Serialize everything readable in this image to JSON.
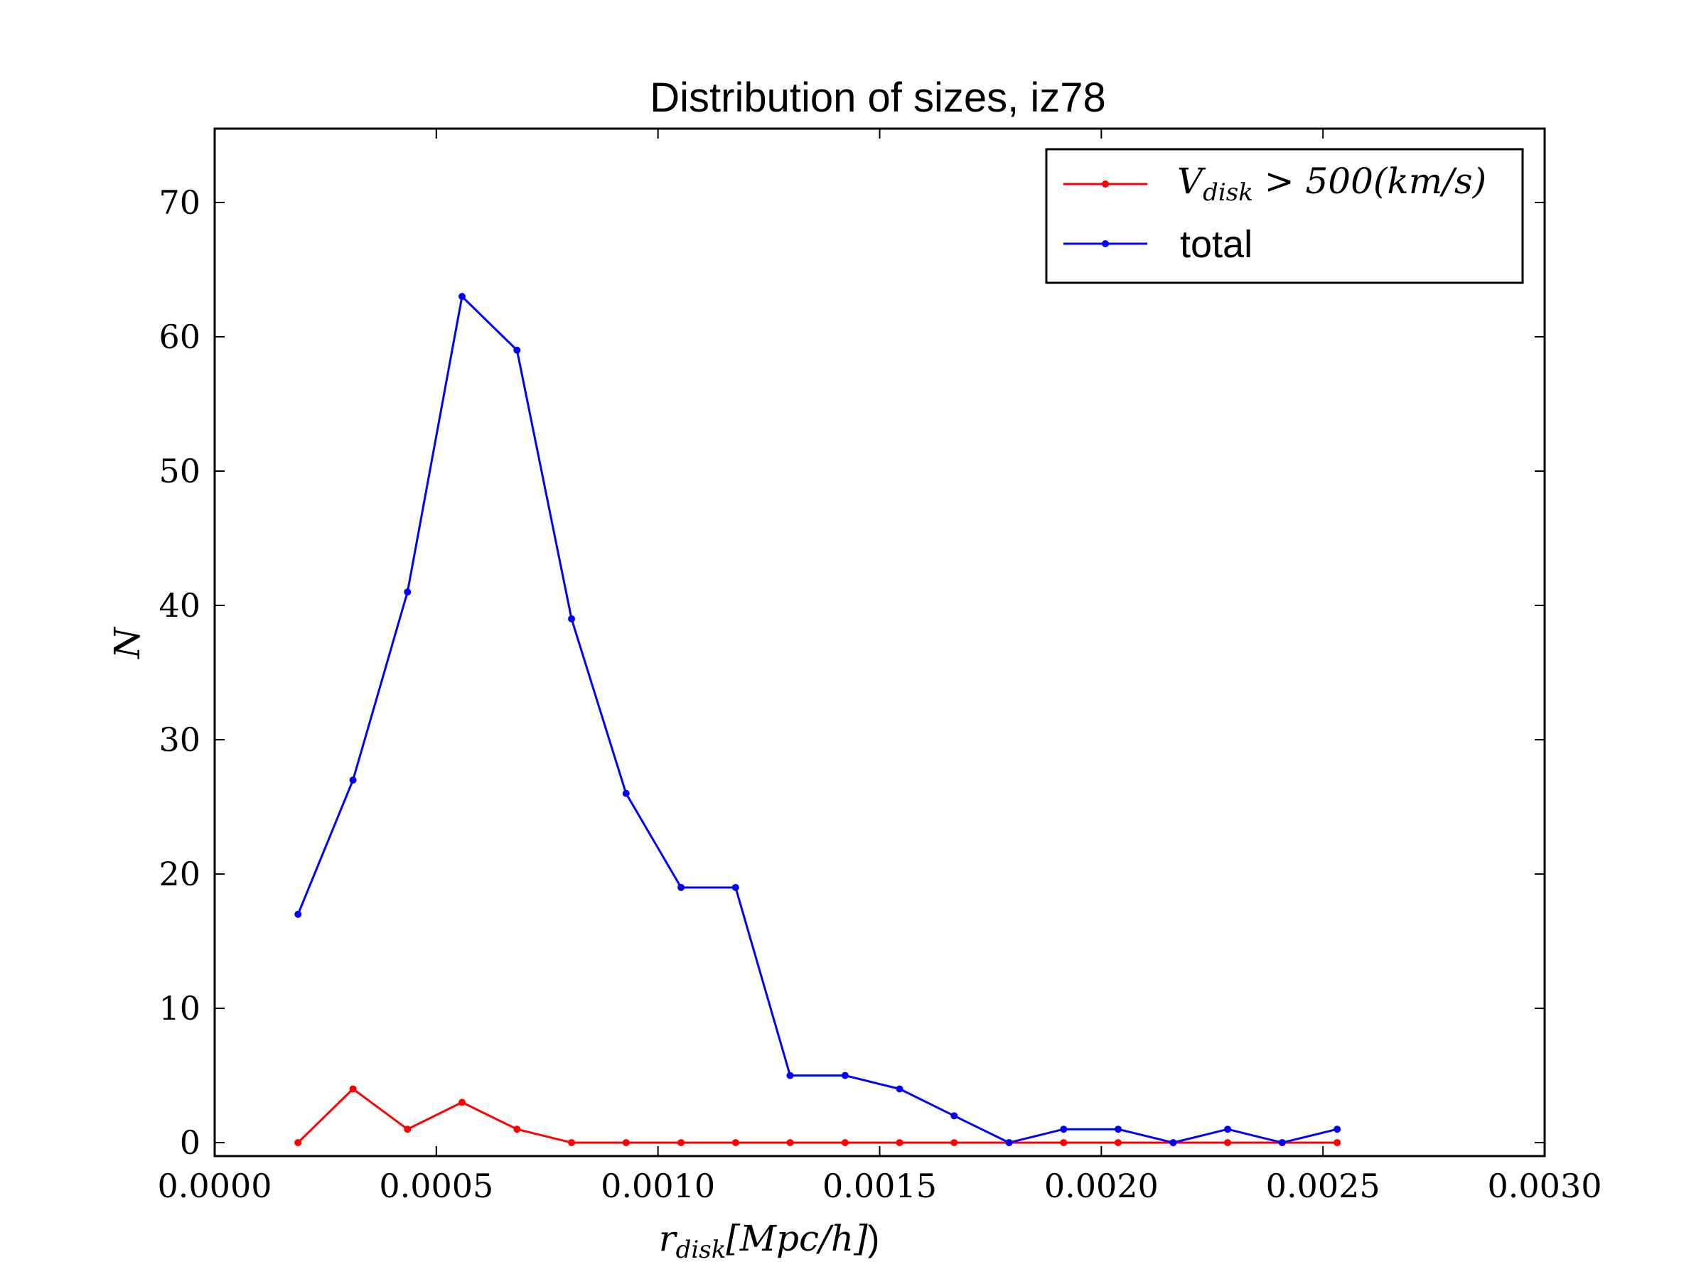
{
  "chart_data": {
    "type": "line",
    "title": "Distribution of sizes, iz78",
    "xlabel": "r_disk[Mpc/h])",
    "ylabel": "N",
    "xlim": [
      0.0,
      0.003
    ],
    "ylim": [
      -1,
      75.5
    ],
    "grid": false,
    "legend_position": "top-right",
    "x_tick_labels": [
      "0.0000",
      "0.0005",
      "0.0010",
      "0.0015",
      "0.0020",
      "0.0025",
      "0.0030"
    ],
    "y_tick_labels": [
      "0",
      "10",
      "20",
      "30",
      "40",
      "50",
      "60",
      "70"
    ],
    "x": [
      0.000188,
      0.000312,
      0.000435,
      0.000558,
      0.000682,
      0.000805,
      0.000928,
      0.001052,
      0.001175,
      0.001298,
      0.001422,
      0.001545,
      0.001668,
      0.001792,
      0.001915,
      0.002038,
      0.002162,
      0.002285,
      0.002408,
      0.002532
    ],
    "series": [
      {
        "name": "V_disk > 500(km/s)",
        "color": "#ff0000",
        "values": [
          0,
          4,
          1,
          3,
          1,
          0,
          0,
          0,
          0,
          0,
          0,
          0,
          0,
          0,
          0,
          0,
          0,
          0,
          0,
          0
        ]
      },
      {
        "name": "total",
        "color": "#0000ff",
        "values": [
          17,
          27,
          41,
          63,
          59,
          39,
          26,
          19,
          19,
          5,
          5,
          4,
          2,
          0,
          1,
          1,
          0,
          1,
          0,
          1
        ]
      }
    ]
  },
  "legend": {
    "series0_base": "V",
    "series0_sub": "disk",
    "series0_rest": " > 500(km/s)",
    "series1_label": "total"
  },
  "axis_text": {
    "xlabel_base": "r",
    "xlabel_sub": "disk",
    "xlabel_rest": "[Mpc/h]",
    "xlabel_paren": ")",
    "ylabel": "N"
  }
}
